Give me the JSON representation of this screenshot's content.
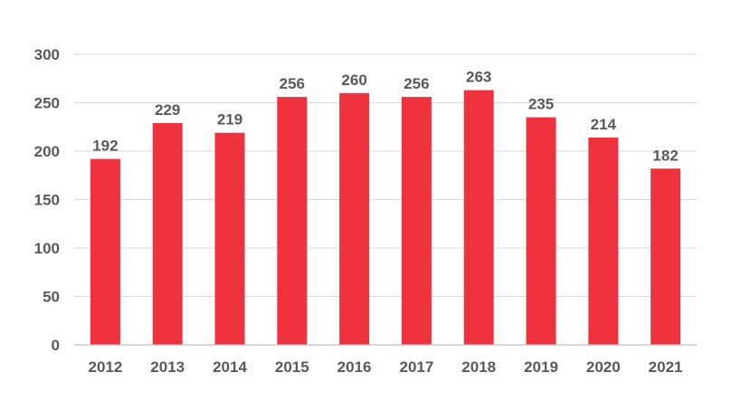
{
  "chart_data": {
    "type": "bar",
    "title": "",
    "xlabel": "",
    "ylabel": "",
    "categories": [
      "2012",
      "2013",
      "2014",
      "2015",
      "2016",
      "2017",
      "2018",
      "2019",
      "2020",
      "2021"
    ],
    "values": [
      192,
      229,
      219,
      256,
      260,
      256,
      263,
      235,
      214,
      182
    ],
    "data_labels": [
      "192",
      "229",
      "219",
      "256",
      "260",
      "256",
      "263",
      "235",
      "214",
      "182"
    ],
    "ylim": [
      0,
      300
    ],
    "yticks": [
      0,
      50,
      100,
      150,
      200,
      250,
      300
    ],
    "ytick_labels": [
      "0",
      "50",
      "100",
      "150",
      "200",
      "250",
      "300"
    ],
    "grid": true,
    "legend": "none",
    "colors": {
      "bar": "#ee333e"
    }
  }
}
